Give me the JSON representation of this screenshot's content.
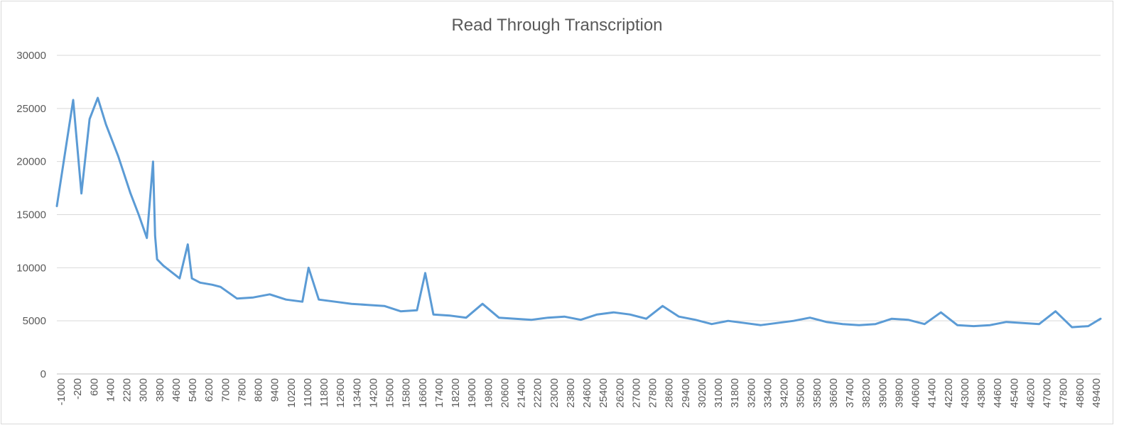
{
  "chart_data": {
    "type": "line",
    "title": "Read Through Transcription",
    "xlabel": "",
    "ylabel": "",
    "ylim": [
      0,
      30000
    ],
    "y_ticks": [
      "0",
      "5000",
      "10000",
      "15000",
      "20000",
      "25000",
      "30000"
    ],
    "x_tick_labels": [
      "-1000",
      "-200",
      "600",
      "1400",
      "2200",
      "3000",
      "3800",
      "4600",
      "5400",
      "6200",
      "7000",
      "7800",
      "8600",
      "9400",
      "10200",
      "11000",
      "11800",
      "12600",
      "13400",
      "14200",
      "15000",
      "15800",
      "16600",
      "17400",
      "18200",
      "19000",
      "19800",
      "20600",
      "21400",
      "22200",
      "23000",
      "23800",
      "24600",
      "25400",
      "26200",
      "27000",
      "27800",
      "28600",
      "29400",
      "30200",
      "31000",
      "31800",
      "32600",
      "33400",
      "34200",
      "35000",
      "35800",
      "36600",
      "37400",
      "38200",
      "39000",
      "39800",
      "40600",
      "41400",
      "42200",
      "43000",
      "43800",
      "44600",
      "45400",
      "46200",
      "47000",
      "47800",
      "48600",
      "49400"
    ],
    "grid": true,
    "legend": "none",
    "x_step": 100,
    "series": [
      {
        "color": "#5b9bd5",
        "x": [
          -1000,
          -200,
          200,
          600,
          1000,
          1400,
          2000,
          2600,
          3000,
          3400,
          3700,
          3800,
          3900,
          4200,
          4600,
          5000,
          5400,
          5600,
          6000,
          6600,
          7000,
          7800,
          8600,
          9400,
          10200,
          11000,
          11300,
          11800,
          12600,
          13400,
          14200,
          15000,
          15800,
          16600,
          17000,
          17400,
          18200,
          19000,
          19800,
          20600,
          21400,
          22200,
          23000,
          23800,
          24600,
          25400,
          26200,
          27000,
          27800,
          28600,
          29400,
          30200,
          31000,
          31800,
          32600,
          33400,
          34200,
          35000,
          35800,
          36600,
          37400,
          38200,
          39000,
          39800,
          40600,
          41400,
          42200,
          43000,
          43800,
          44600,
          45400,
          46200,
          47000,
          47800,
          48600,
          49400,
          50000
        ],
        "y": [
          15800,
          25800,
          17000,
          24000,
          26000,
          23500,
          20500,
          17000,
          15000,
          12800,
          20000,
          13000,
          10800,
          10200,
          9600,
          9000,
          12200,
          9000,
          8600,
          8400,
          8200,
          7100,
          7200,
          7500,
          7000,
          6800,
          10000,
          7000,
          6800,
          6600,
          6500,
          6400,
          5900,
          6000,
          9500,
          5600,
          5500,
          5300,
          6600,
          5300,
          5200,
          5100,
          5300,
          5400,
          5100,
          5600,
          5800,
          5600,
          5200,
          6400,
          5400,
          5100,
          4700,
          5000,
          4800,
          4600,
          4800,
          5000,
          5300,
          4900,
          4700,
          4600,
          4700,
          5200,
          5100,
          4700,
          5800,
          4600,
          4500,
          4600,
          4900,
          4800,
          4700,
          5900,
          4400,
          4500,
          5200
        ]
      }
    ]
  }
}
